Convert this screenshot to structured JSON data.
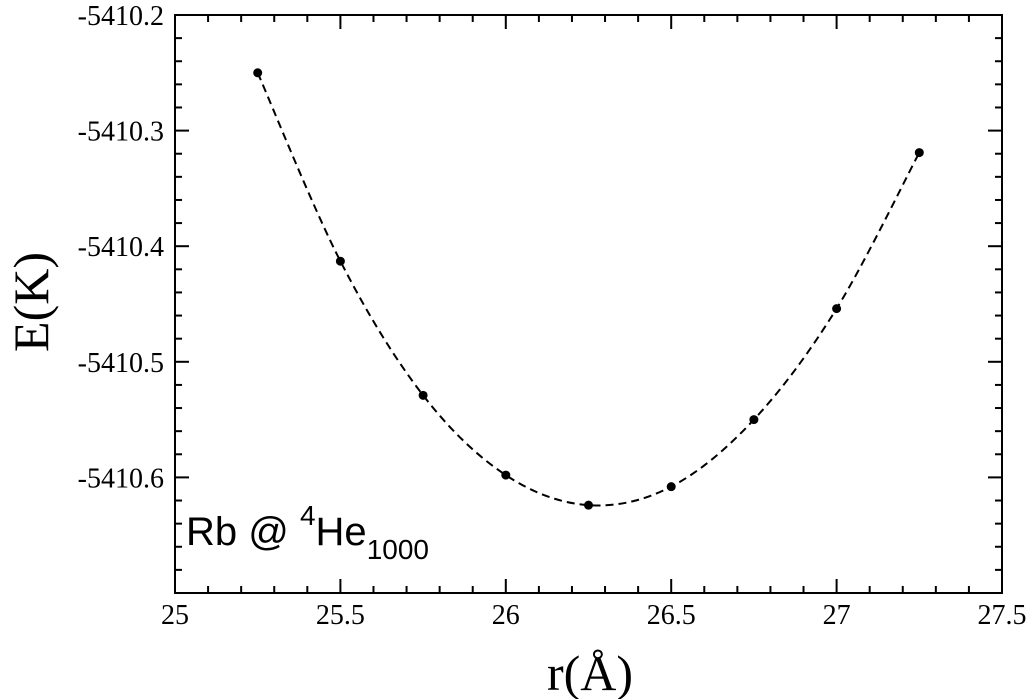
{
  "chart_data": {
    "type": "scatter",
    "xlabel": "r(Å)",
    "ylabel": "E(K)",
    "xlim": [
      25,
      27.5
    ],
    "ylim": [
      -5410.7,
      -5410.2
    ],
    "xticks": [
      25,
      25.5,
      26,
      26.5,
      27,
      27.5
    ],
    "xtick_labels": [
      "25",
      "25.5",
      "26",
      "26.5",
      "27",
      "27.5"
    ],
    "yticks": [
      -5410.6,
      -5410.5,
      -5410.4,
      -5410.3,
      -5410.2
    ],
    "ytick_labels": [
      "-5410.6",
      "-5410.5",
      "-5410.4",
      "-5410.3",
      "-5410.2"
    ],
    "grid": false,
    "series": [
      {
        "marker": "circle",
        "x": [
          25.25,
          25.5,
          25.75,
          26.0,
          26.25,
          26.5,
          26.75,
          27.0,
          27.25
        ],
        "y": [
          -5410.25,
          -5410.413,
          -5410.529,
          -5410.598,
          -5410.624,
          -5410.608,
          -5410.55,
          -5410.454,
          -5410.319
        ]
      },
      {
        "style": "dashed-fit",
        "x": [
          25.25,
          25.5,
          25.75,
          26.0,
          26.25,
          26.5,
          26.75,
          27.0,
          27.25
        ],
        "y": [
          -5410.25,
          -5410.413,
          -5410.529,
          -5410.598,
          -5410.624,
          -5410.608,
          -5410.55,
          -5410.454,
          -5410.319
        ]
      }
    ],
    "annotation": {
      "main": "Rb @ ",
      "superscript": "4",
      "element": "He",
      "subscript": "1000"
    }
  }
}
